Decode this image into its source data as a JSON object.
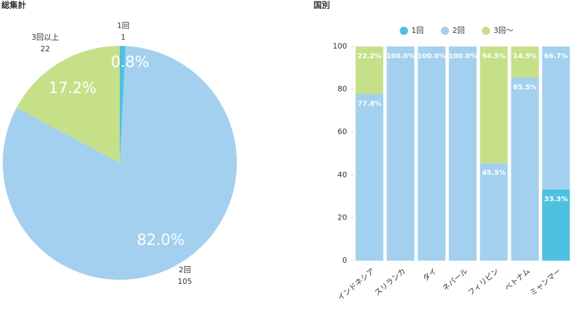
{
  "chart_data": [
    {
      "type": "pie",
      "title": "総集計",
      "categories": [
        "1回",
        "2回",
        "3回以上"
      ],
      "counts": [
        1,
        105,
        22
      ],
      "values": [
        0.8,
        82.0,
        17.2
      ],
      "value_labels": [
        "0.8%",
        "82.0%",
        "17.2%"
      ],
      "colors": [
        "#4fc1e0",
        "#a3d0ee",
        "#c6e08a"
      ]
    },
    {
      "type": "stacked_bar",
      "title": "国別",
      "categories": [
        "インドネシア",
        "スリランカ",
        "タイ",
        "ネパール",
        "フィリピン",
        "ベトナム",
        "ミャンマー"
      ],
      "series": [
        {
          "name": "1回",
          "color": "#4fc1e0",
          "values": [
            0,
            0,
            0,
            0,
            0,
            0,
            33.3
          ],
          "value_labels": [
            null,
            null,
            null,
            null,
            null,
            null,
            "33.3%"
          ]
        },
        {
          "name": "2回",
          "color": "#a3d0ee",
          "values": [
            77.8,
            100,
            100,
            100,
            45.5,
            85.5,
            66.7
          ],
          "value_labels": [
            "77.8%",
            "100.0%",
            "100.0%",
            "100.0%",
            "45.5%",
            "85.5%",
            "66.7%"
          ]
        },
        {
          "name": "3回〜",
          "color": "#c6e08a",
          "values": [
            22.2,
            0,
            0,
            0,
            54.5,
            14.5,
            0
          ],
          "value_labels": [
            "22.2%",
            null,
            null,
            null,
            "54.5%",
            "14.5%",
            null
          ]
        }
      ],
      "ylim": [
        0,
        100
      ],
      "yticks": [
        0,
        20,
        40,
        60,
        80,
        100
      ],
      "grid": false,
      "legend": "top"
    }
  ]
}
